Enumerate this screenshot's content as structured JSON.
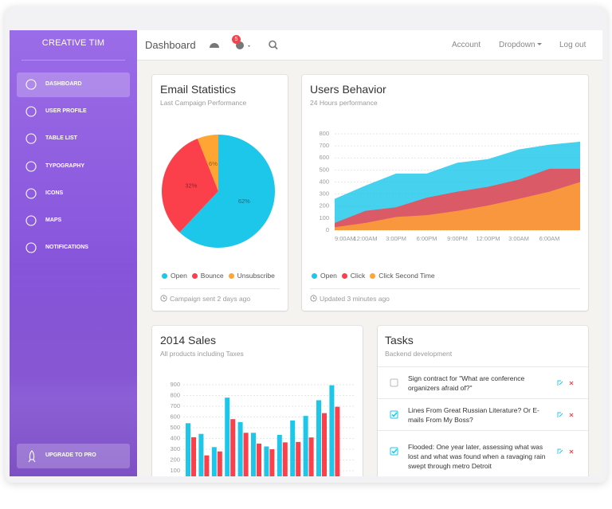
{
  "sidebar": {
    "brand": "CREATIVE TIM",
    "menu": [
      "DASHBOARD",
      "USER PROFILE",
      "TABLE LIST",
      "TYPOGRAPHY",
      "ICONS",
      "MAPS",
      "NOTIFICATIONS"
    ],
    "upgrade": "UPGRADE TO PRO"
  },
  "navbar": {
    "title": "Dashboard",
    "badge": 5,
    "links": [
      "Account",
      "Dropdown",
      "Log out"
    ]
  },
  "chart_data": [
    {
      "type": "pie",
      "title": "Email Statistics",
      "subtitle": "Last Campaign Performance",
      "categories": [
        "Open",
        "Bounce",
        "Unsubscribe"
      ],
      "values": [
        62,
        32,
        6
      ],
      "value_labels": [
        "62%",
        "32%",
        "6%"
      ],
      "colors": [
        "#1dc7ea",
        "#fb404b",
        "#ffa534"
      ],
      "footer": "Campaign sent 2 days ago"
    },
    {
      "type": "area",
      "title": "Users Behavior",
      "subtitle": "24 Hours performance",
      "x": [
        "9:00AM",
        "12:00AM",
        "3:00PM",
        "6:00PM",
        "9:00PM",
        "12:00PM",
        "3:00AM",
        "6:00AM",
        null
      ],
      "series": [
        {
          "name": "Open",
          "color": "#1dc7ea",
          "values": [
            260,
            370,
            470,
            470,
            560,
            590,
            670,
            710,
            735
          ]
        },
        {
          "name": "Click",
          "color": "#fb404b",
          "values": [
            60,
            160,
            190,
            270,
            320,
            360,
            420,
            510,
            510
          ]
        },
        {
          "name": "Click Second Time",
          "color": "#ffa534",
          "values": [
            25,
            60,
            110,
            125,
            160,
            205,
            260,
            320,
            400
          ]
        }
      ],
      "ylim": [
        0,
        800
      ],
      "yticks": [
        0,
        100,
        200,
        300,
        400,
        500,
        600,
        700,
        800
      ],
      "grid": true,
      "footer": "Updated 3 minutes ago"
    },
    {
      "type": "bar",
      "title": "2014 Sales",
      "subtitle": "All products including Taxes",
      "categories": [
        null,
        null,
        null,
        null,
        null,
        null,
        null,
        null,
        null,
        null,
        null,
        null
      ],
      "series": [
        {
          "color": "#1dc7ea",
          "values": [
            542,
            443,
            320,
            780,
            553,
            453,
            326,
            434,
            568,
            610,
            756,
            895
          ]
        },
        {
          "color": "#fb404b",
          "values": [
            412,
            243,
            280,
            580,
            453,
            353,
            300,
            364,
            368,
            410,
            636,
            695
          ]
        }
      ],
      "ylim": [
        0,
        900
      ],
      "yticks": [
        100,
        200,
        300,
        400,
        500,
        600,
        700,
        800,
        900
      ],
      "grid": true
    }
  ],
  "tasks": {
    "title": "Tasks",
    "subtitle": "Backend development",
    "items": [
      {
        "text": "Sign contract for \"What are conference organizers afraid of?\"",
        "done": false
      },
      {
        "text": "Lines From Great Russian Literature? Or E-mails From My Boss?",
        "done": true
      },
      {
        "text": "Flooded: One year later, assessing what was lost and what was found when a ravaging rain swept through metro Detroit",
        "done": true
      }
    ]
  }
}
